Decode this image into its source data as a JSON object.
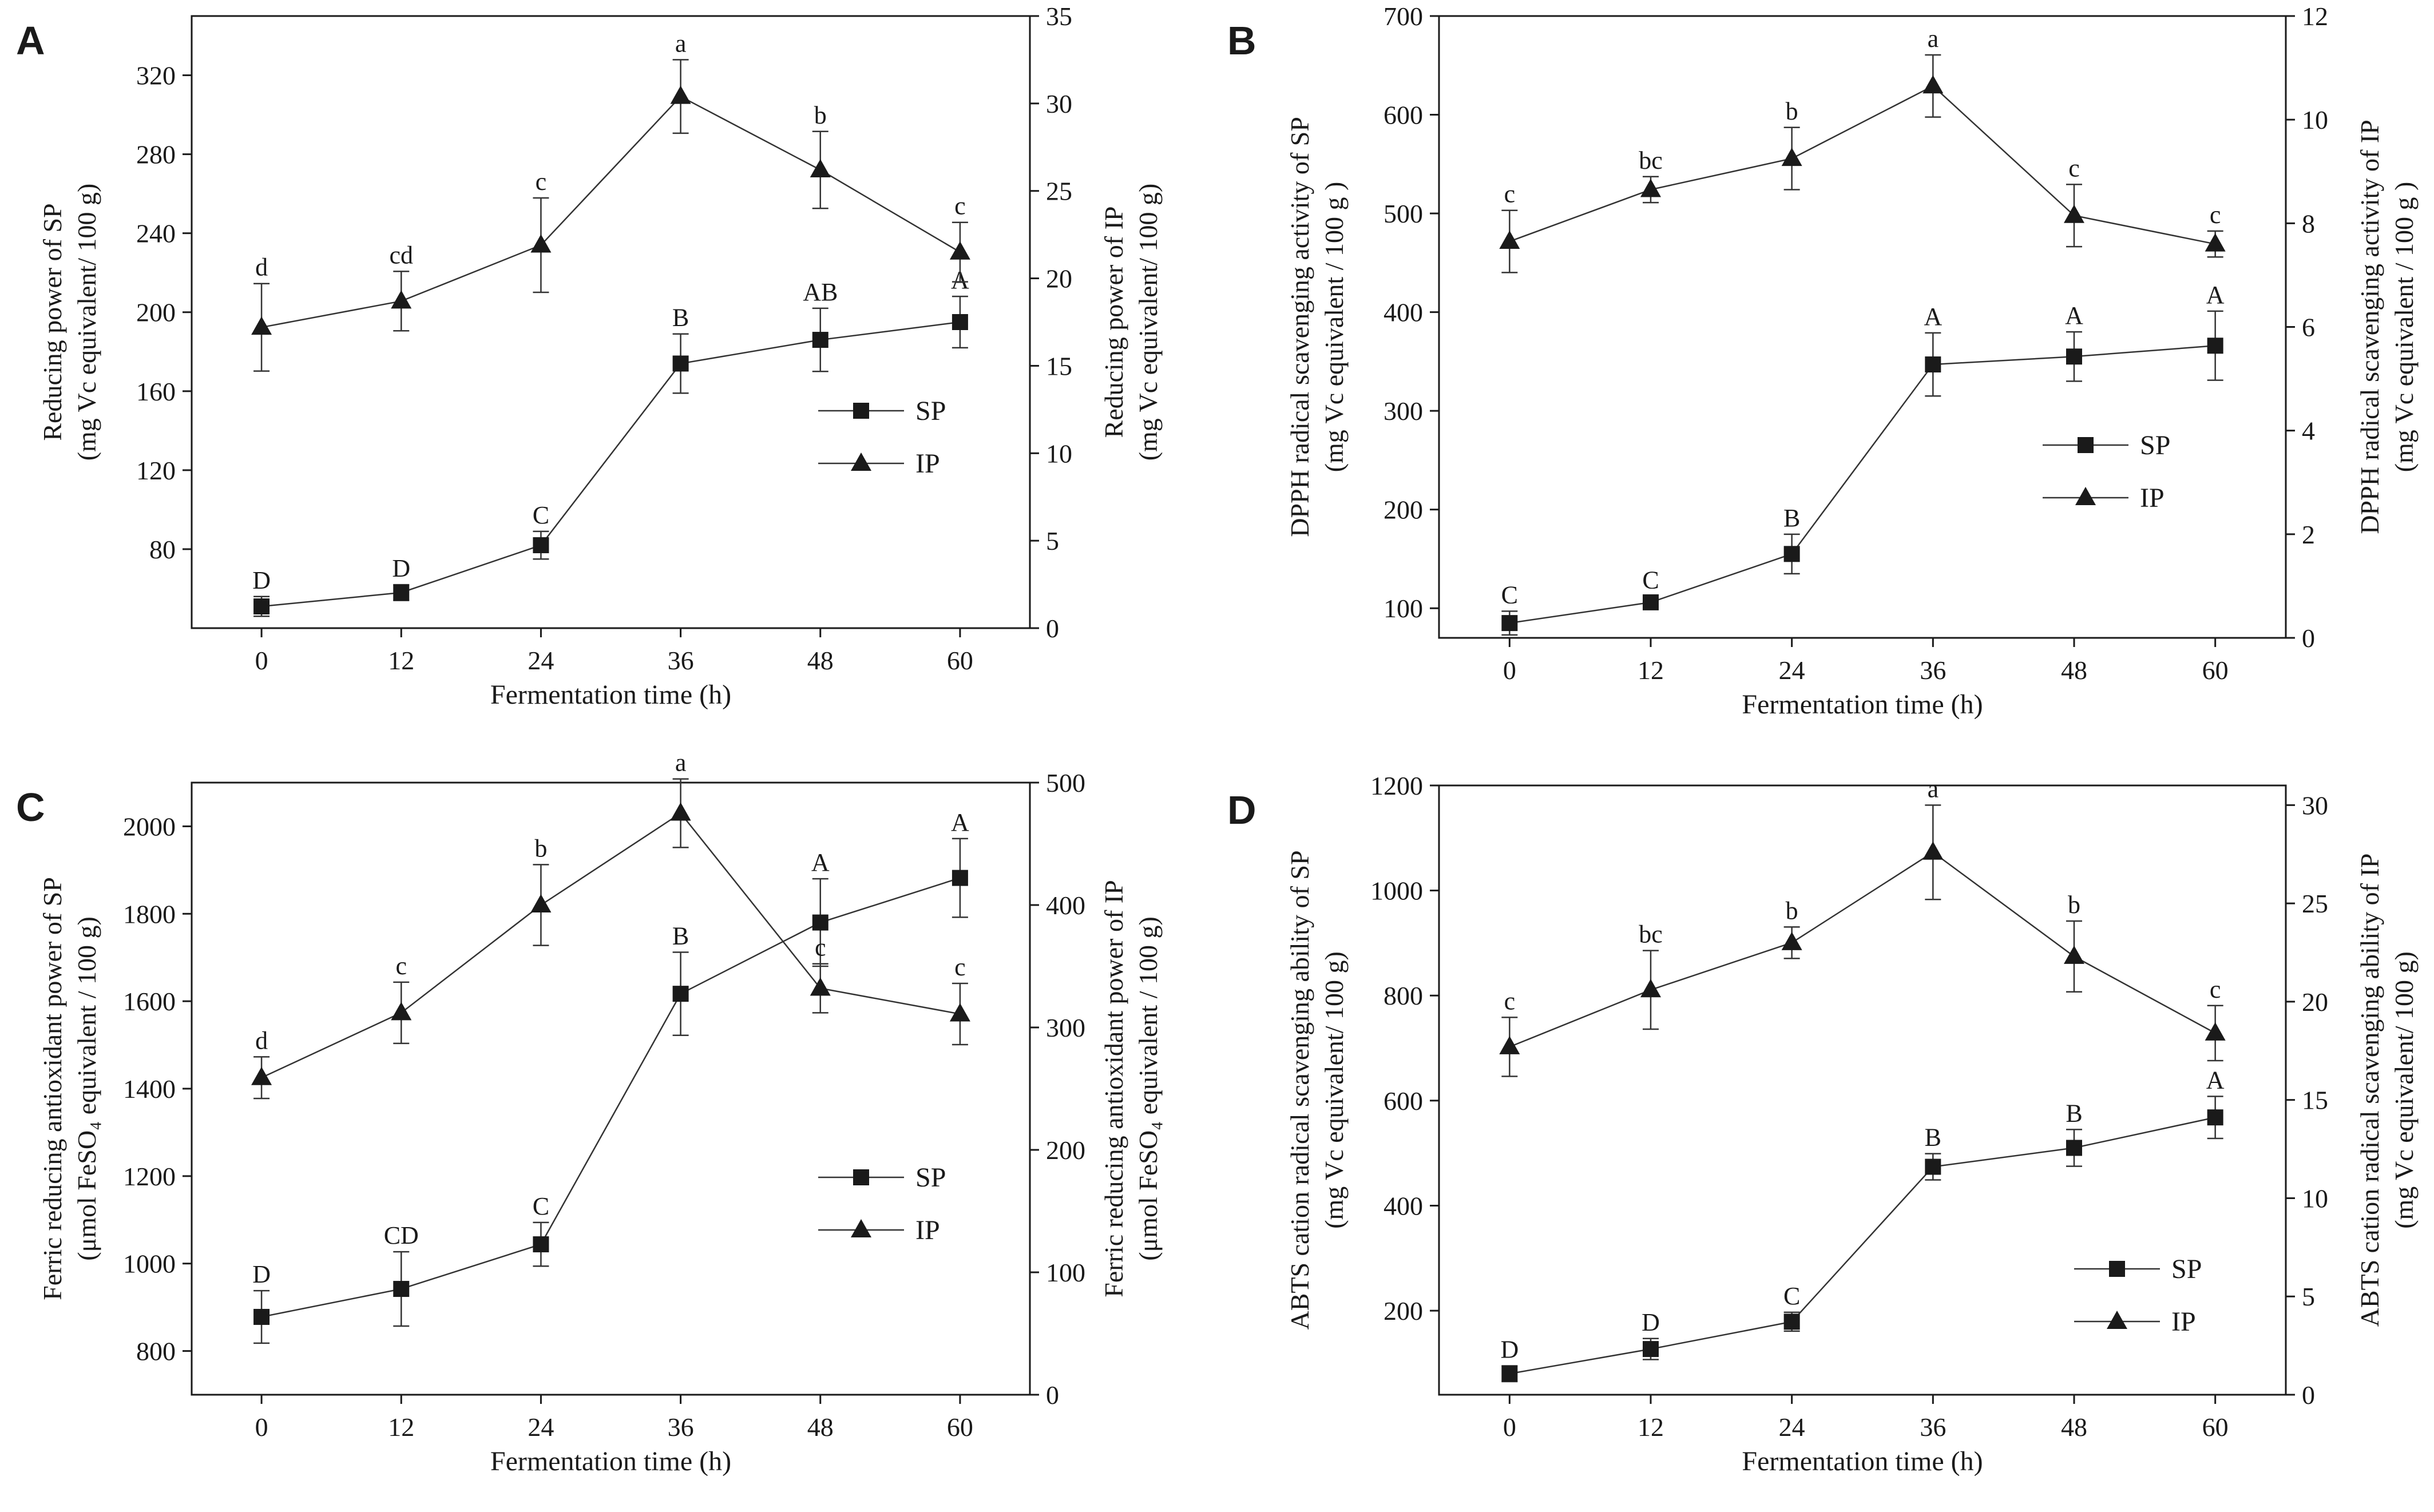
{
  "figure": {
    "background": "#ffffff",
    "ink": "#1a1a1a"
  },
  "chart_data": [
    {
      "panel": "A",
      "type": "line",
      "xlabel": "Fermentation time (h)",
      "x": [
        0,
        12,
        24,
        36,
        48,
        60
      ],
      "xticks": [
        "0",
        "12",
        "24",
        "36",
        "48",
        "60"
      ],
      "xlim": [
        -6,
        66
      ],
      "ylabel_left": [
        "Reducing power of SP",
        "(mg Vc  equivalent/ 100 g)"
      ],
      "ylabel_right": [
        "Reducing power of IP",
        "(mg Vc  equivalent/ 100 g)"
      ],
      "ylim_left": [
        40,
        350
      ],
      "yticks_left": [
        80,
        120,
        160,
        200,
        240,
        280,
        320
      ],
      "ylim_right": [
        0,
        35
      ],
      "yticks_right": [
        0,
        5,
        10,
        15,
        20,
        25,
        30,
        35
      ],
      "legend": {
        "position": "right-middle",
        "entries": [
          "SP",
          "IP"
        ]
      },
      "series": [
        {
          "name": "SP",
          "marker": "square",
          "axis": "left",
          "values": [
            51,
            58,
            82,
            174,
            186,
            195
          ],
          "errors": [
            5,
            4,
            7,
            15,
            16,
            13
          ],
          "letters": [
            "D",
            "D",
            "C",
            "B",
            "AB",
            "A"
          ]
        },
        {
          "name": "IP",
          "marker": "triangle",
          "axis": "right",
          "values": [
            17.2,
            18.7,
            21.9,
            30.4,
            26.2,
            21.5
          ],
          "errors": [
            2.5,
            1.7,
            2.7,
            2.1,
            2.2,
            1.7
          ],
          "letters": [
            "d",
            "cd",
            "c",
            "a",
            "b",
            "c"
          ]
        }
      ]
    },
    {
      "panel": "B",
      "type": "line",
      "xlabel": "Fermentation time (h)",
      "x": [
        0,
        12,
        24,
        36,
        48,
        60
      ],
      "xticks": [
        "0",
        "12",
        "24",
        "36",
        "48",
        "60"
      ],
      "xlim": [
        -6,
        66
      ],
      "ylabel_left": [
        "DPPH radical scavenging activity of SP",
        "(mg Vc equivalent / 100 g )"
      ],
      "ylabel_right": [
        "DPPH radical scavenging activity of IP",
        "(mg Vc equivalent / 100 g )"
      ],
      "ylim_left": [
        70,
        700
      ],
      "yticks_left": [
        100,
        200,
        300,
        400,
        500,
        600,
        700
      ],
      "ylim_right": [
        0,
        12
      ],
      "yticks_right": [
        0,
        2,
        4,
        6,
        8,
        10,
        12
      ],
      "legend": {
        "position": "right-middle",
        "entries": [
          "SP",
          "IP"
        ]
      },
      "series": [
        {
          "name": "SP",
          "marker": "square",
          "axis": "left",
          "values": [
            85,
            106,
            155,
            347,
            355,
            366
          ],
          "errors": [
            12,
            6,
            20,
            32,
            25,
            35
          ],
          "letters": [
            "C",
            "C",
            "B",
            "A",
            "A",
            "A"
          ]
        },
        {
          "name": "IP",
          "marker": "triangle",
          "axis": "right",
          "values": [
            7.65,
            8.65,
            9.25,
            10.65,
            8.15,
            7.6
          ],
          "errors": [
            0.6,
            0.25,
            0.6,
            0.6,
            0.6,
            0.25
          ],
          "letters": [
            "c",
            "bc",
            "b",
            "a",
            "c",
            "c"
          ]
        }
      ]
    },
    {
      "panel": "C",
      "type": "line",
      "xlabel": "Fermentation time (h)",
      "x": [
        0,
        12,
        24,
        36,
        48,
        60
      ],
      "xticks": [
        "0",
        "12",
        "24",
        "36",
        "48",
        "60"
      ],
      "xlim": [
        -6,
        66
      ],
      "ylabel_left": [
        "Ferric reducing antioxidant power of SP",
        "(μmol FeSO₄ equivalent / 100 g)"
      ],
      "ylabel_right": [
        "Ferric reducing antioxidant power of IP",
        "(μmol FeSO₄ equivalent / 100 g)"
      ],
      "ylim_left": [
        700,
        2100
      ],
      "yticks_left": [
        800,
        1000,
        1200,
        1400,
        1600,
        1800,
        2000
      ],
      "ylim_right": [
        0,
        500
      ],
      "yticks_right": [
        0,
        100,
        200,
        300,
        400,
        500
      ],
      "legend": {
        "position": "right-lower",
        "entries": [
          "SP",
          "IP"
        ]
      },
      "series": [
        {
          "name": "SP",
          "marker": "square",
          "axis": "left",
          "values": [
            878,
            942,
            1044,
            1617,
            1780,
            1882
          ],
          "errors": [
            60,
            85,
            50,
            95,
            100,
            90
          ],
          "letters": [
            "D",
            "CD",
            "C",
            "B",
            "A",
            "A"
          ]
        },
        {
          "name": "IP",
          "marker": "triangle",
          "axis": "right",
          "values": [
            259,
            312,
            400,
            475,
            332,
            311
          ],
          "errors": [
            17,
            25,
            33,
            28,
            20,
            25
          ],
          "letters": [
            "d",
            "c",
            "b",
            "a",
            "c",
            "c"
          ]
        }
      ]
    },
    {
      "panel": "D",
      "type": "line",
      "xlabel": "Fermentation time (h)",
      "x": [
        0,
        12,
        24,
        36,
        48,
        60
      ],
      "xticks": [
        "0",
        "12",
        "24",
        "36",
        "48",
        "60"
      ],
      "xlim": [
        -6,
        66
      ],
      "ylabel_left": [
        "ABTS cation radical scavenging ability of SP",
        "(mg Vc  equivalent/ 100 g)"
      ],
      "ylabel_right": [
        "ABTS cation radical scavenging ability of IP",
        "(mg Vc  equivalent/ 100 g)"
      ],
      "ylim_left": [
        40,
        1200
      ],
      "yticks_left": [
        200,
        400,
        600,
        800,
        1000,
        1200
      ],
      "ylim_right": [
        0,
        31
      ],
      "yticks_right": [
        0,
        5,
        10,
        15,
        20,
        25,
        30
      ],
      "legend": {
        "position": "right-lower",
        "entries": [
          "SP",
          "IP"
        ]
      },
      "series": [
        {
          "name": "SP",
          "marker": "square",
          "axis": "left",
          "values": [
            80,
            127,
            179,
            474,
            510,
            568
          ],
          "errors": [
            15,
            20,
            18,
            25,
            35,
            40
          ],
          "letters": [
            "D",
            "D",
            "C",
            "B",
            "B",
            "A"
          ]
        },
        {
          "name": "IP",
          "marker": "triangle",
          "axis": "right",
          "values": [
            17.7,
            20.6,
            23.0,
            27.6,
            22.3,
            18.4
          ],
          "errors": [
            1.5,
            2.0,
            0.8,
            2.4,
            1.8,
            1.4
          ],
          "letters": [
            "c",
            "bc",
            "b",
            "a",
            "b",
            "c"
          ]
        }
      ]
    }
  ]
}
